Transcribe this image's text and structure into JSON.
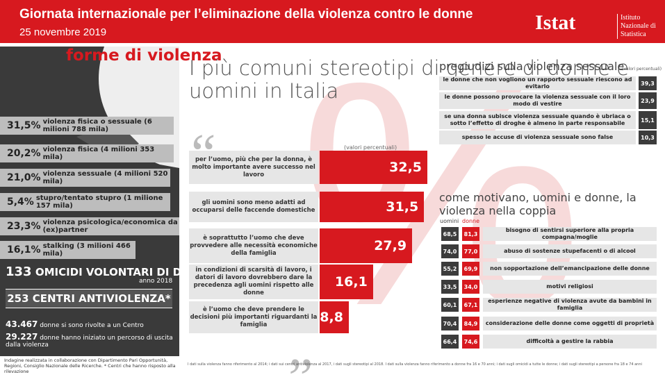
{
  "header": {
    "title": "Giornata internazionale per l’eliminazione della violenza contro le donne",
    "date": "25 novembre 2019",
    "logo": "Istat",
    "institute": "Istituto Nazionale di Statistica"
  },
  "left_panel": {
    "title": "forme di violenza",
    "items": [
      {
        "pct": "31,5%",
        "label": "violenza fisica o sessuale (6 milioni 788 mila)"
      },
      {
        "pct": "20,2%",
        "label": "violenza fisica (4 milioni 353 mila)"
      },
      {
        "pct": "21,0%",
        "label": "violenza sessuale (4 milioni 520 mila)"
      },
      {
        "pct": "5,4%",
        "label": "stupro/tentato stupro (1 milione 157 mila)"
      },
      {
        "pct": "23,3%",
        "label": "violenza psicologica/economica da (ex)partner"
      },
      {
        "pct": "16,1%",
        "label": "stalking (3 milioni 466 mila)"
      }
    ],
    "homicides": {
      "number": "133",
      "label": "OMICIDI VOLONTARI DI DONNE",
      "year": "anno 2018"
    },
    "centers": "253 CENTRI ANTIVIOLENZA*",
    "stats": [
      {
        "number": "43.467",
        "label": "donne si sono rivolte a un Centro"
      },
      {
        "number": "29.227",
        "label": "donne hanno iniziato un percorso di uscita dalla violenza"
      }
    ]
  },
  "footnote": "Indagine realizzata in collaborazione con Dipartimento Pari Opportunità, Regioni, Consiglio Nazionale delle Ricerche. * Centri che hanno risposto alla rilevazione",
  "chart_data": [
    {
      "type": "bar",
      "title": "I più comuni stereotipi di genere di donne e uomini in Italia",
      "subtitle": "(valori percentuali)",
      "color": "#d7191f",
      "categories": [
        "per l’uomo, più che per la donna, è molto importante avere successo nel lavoro",
        "gli uomini sono meno adatti ad occuparsi delle faccende domestiche",
        "è soprattutto l’uomo che deve provvedere alle necessità economiche della famiglia",
        "in condizioni di scarsità di lavoro, i datori di lavoro dovrebbero dare la precedenza agli uomini rispetto alle donne",
        "è l’uomo che deve prendere le decisioni più importanti riguardanti la famiglia"
      ],
      "values": [
        32.5,
        31.5,
        27.9,
        16.1,
        8.8
      ],
      "value_labels": [
        "32,5",
        "31,5",
        "27,9",
        "16,1",
        "8,8"
      ]
    }
  ],
  "prejudices": {
    "title": "pregiudizi sulla violenza sessuale",
    "subtitle": "(valori percentuali)",
    "rows": [
      [
        "le donne che non vogliono un rapporto sessuale riescono ad evitarlo",
        "39,3"
      ],
      [
        "le donne possono provocare la violenza sessuale con il loro modo di vestire",
        "23,9"
      ],
      [
        "se una donna subisce violenza sessuale quando è ubriaca o sotto l’effetto di droghe è almeno in parte responsabile",
        "15,1"
      ],
      [
        "spesso le accuse di violenza sessuale sono false",
        "10,3"
      ]
    ]
  },
  "motivations": {
    "title": "come motivano, uomini e donne, la violenza nella coppia",
    "columns": [
      "uomini",
      "donne"
    ],
    "rows": [
      [
        "68,5",
        "81,3",
        "bisogno di sentirsi superiore alla propria compagna/moglie"
      ],
      [
        "74,0",
        "77,0",
        "abuso di sostenze stupefacenti o di alcool"
      ],
      [
        "55,2",
        "69,9",
        "non sopportazione dell’emancipazione delle donne"
      ],
      [
        "33,5",
        "34,0",
        "motivi religiosi"
      ],
      [
        "60,1",
        "67,1",
        "esperienze negative di violenza avute da bambini in famiglia"
      ],
      [
        "70,4",
        "84,9",
        "considerazione delle donne come oggetti di proprietà"
      ],
      [
        "66,4",
        "74,6",
        "difficoltà a gestire la rabbia"
      ]
    ]
  },
  "data_note": "I dati sulla violenza fanno riferimento al 2014; i dati sui centri antiviolenza al 2017, i dati sugli stereotipi al 2018. I dati sulla violenza fanno riferimento a donne fra 16 e 70 anni; i dati sugli omicidi a tutte le donne; i dati sugli stereotipi a persone fra 18 e 74 anni"
}
